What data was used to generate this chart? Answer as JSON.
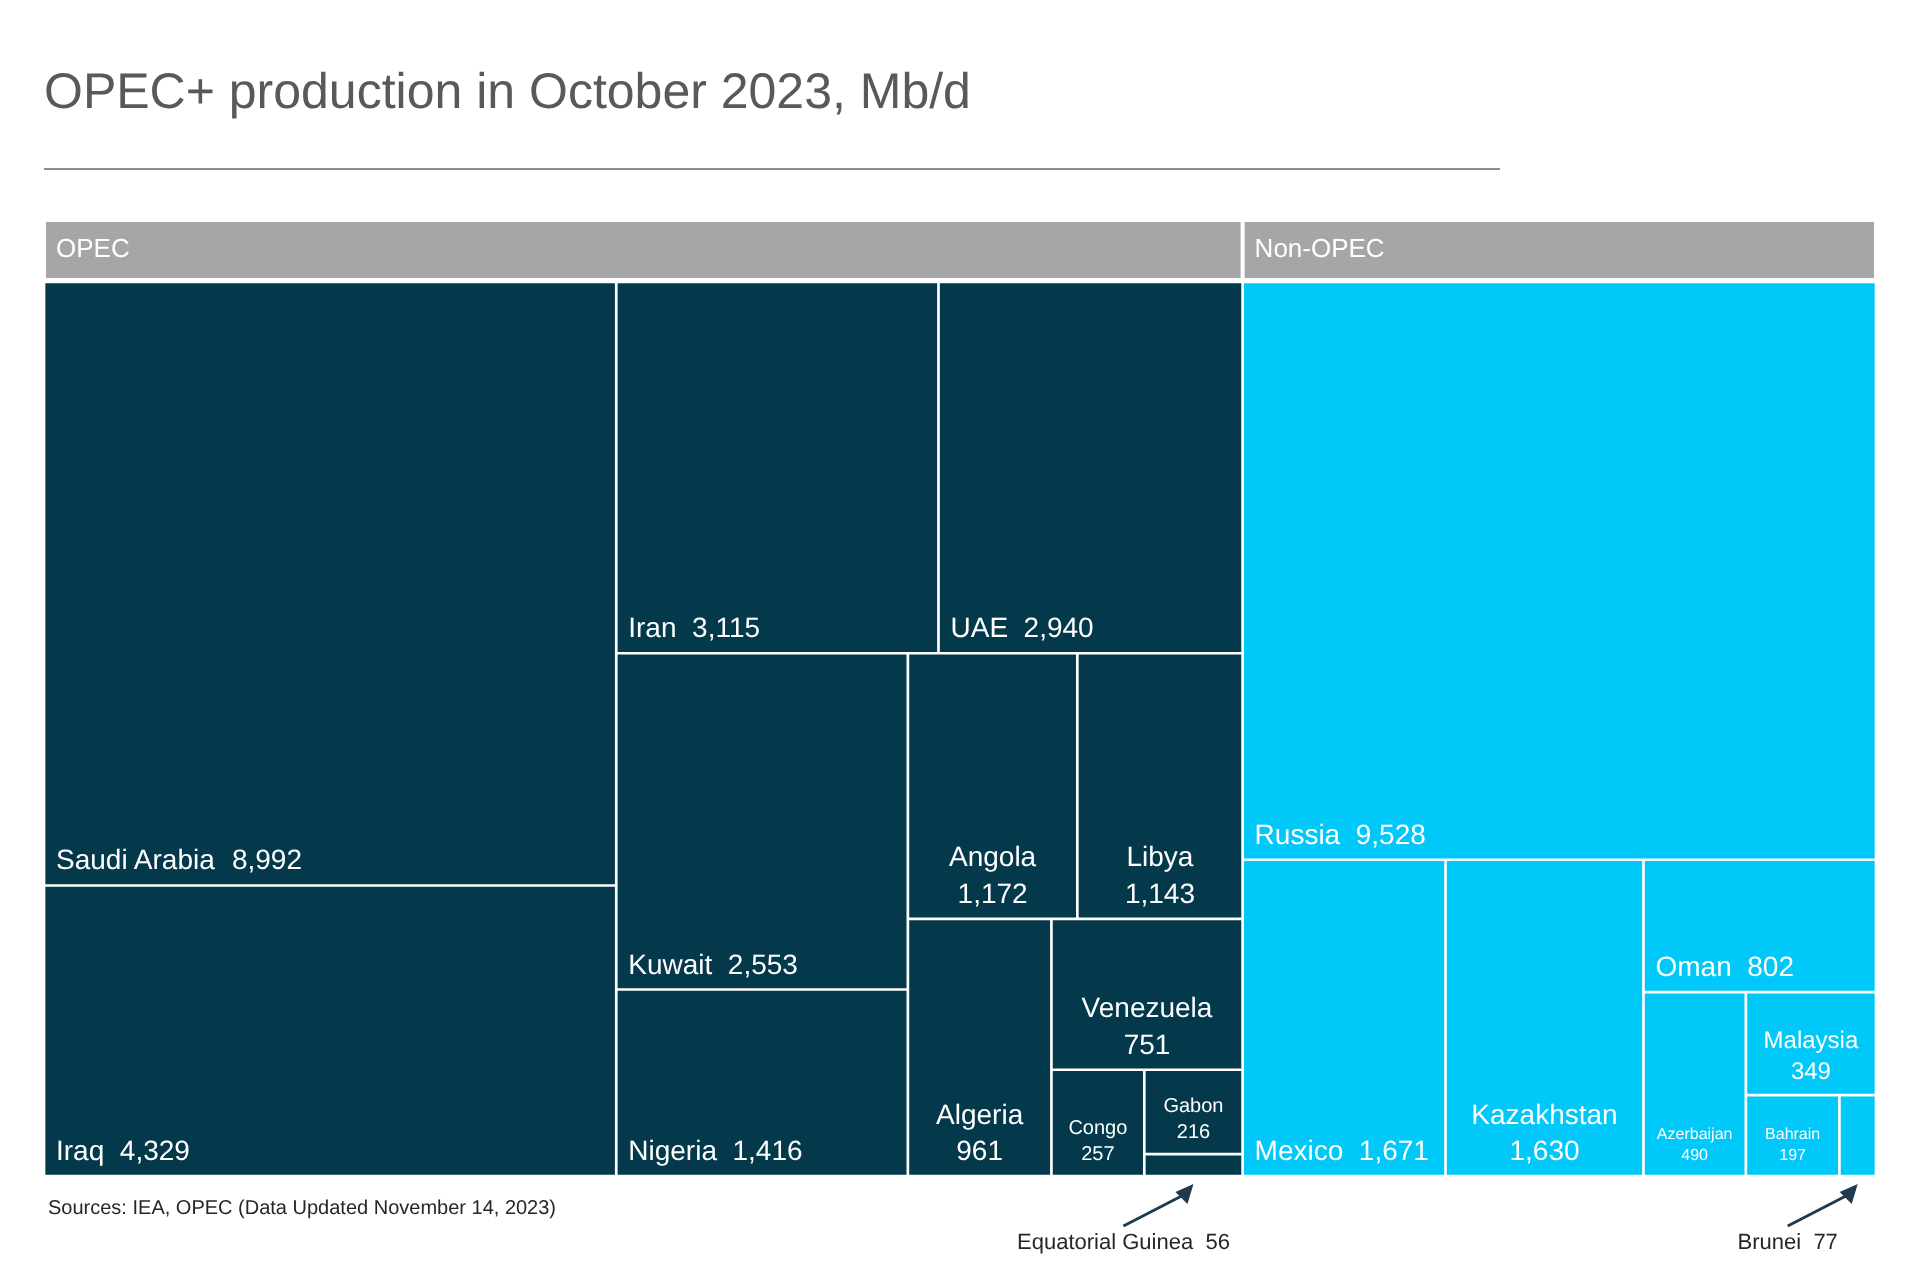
{
  "chart_data": {
    "type": "other",
    "title": "OPEC+ production in October 2023, Mb/d",
    "categories": [
      "Saudi Arabia",
      "Iraq",
      "Iran",
      "UAE",
      "Kuwait",
      "Nigeria",
      "Angola",
      "Libya",
      "Algeria",
      "Venezuela",
      "Congo",
      "Gabon",
      "Equatorial Guinea",
      "Russia",
      "Mexico",
      "Kazakhstan",
      "Oman",
      "Azerbaijan",
      "Malaysia",
      "Bahrain",
      "Brunei"
    ],
    "series": [
      {
        "name": "OPEC",
        "color": "#04394b",
        "values": [
          8992,
          4329,
          3115,
          2940,
          2553,
          1416,
          1172,
          1143,
          961,
          751,
          257,
          216,
          56,
          null,
          null,
          null,
          null,
          null,
          null,
          null,
          null
        ],
        "value_labels": [
          "8,992",
          "4,329",
          "3,115",
          "2,940",
          "2,553",
          "1,416",
          "1,172",
          "1,143",
          "961",
          "751",
          "257",
          "216",
          "56",
          null,
          null,
          null,
          null,
          null,
          null,
          null,
          null
        ]
      },
      {
        "name": "Non-OPEC",
        "color": "#00c8f8",
        "values": [
          null,
          null,
          null,
          null,
          null,
          null,
          null,
          null,
          null,
          null,
          null,
          null,
          null,
          9528,
          1671,
          1630,
          802,
          490,
          349,
          197,
          77
        ],
        "value_labels": [
          null,
          null,
          null,
          null,
          null,
          null,
          null,
          null,
          null,
          null,
          null,
          null,
          null,
          "9,528",
          "1,671",
          "1,630",
          "802",
          "490",
          "349",
          "197",
          "77"
        ]
      }
    ],
    "annotations": [
      "Sources: IEA, OPEC (Data Updated November 14, 2023)"
    ]
  }
}
